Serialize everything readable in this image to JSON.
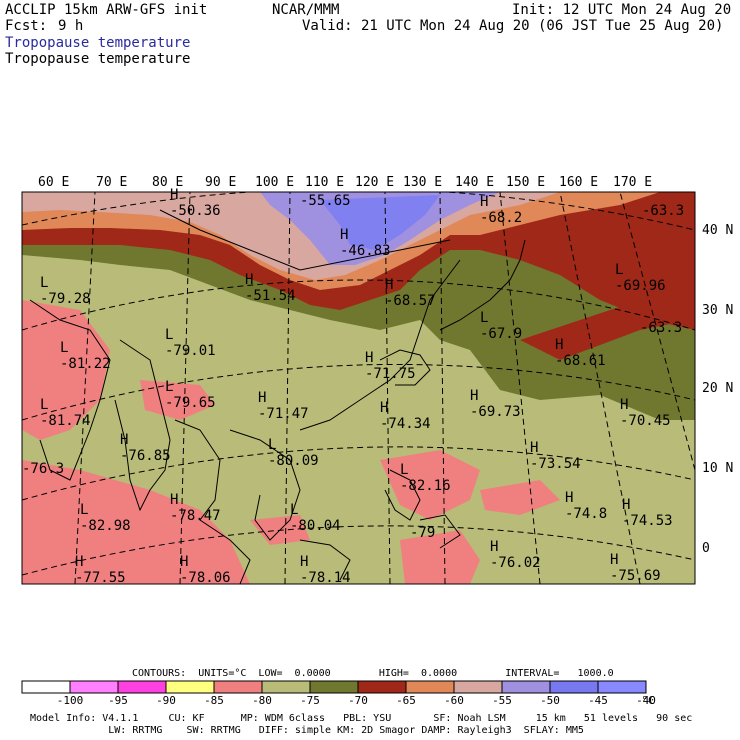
{
  "header": {
    "model": "ACCLIP 15km ARW-GFS init",
    "fcst_label": "Fcst:",
    "fcst_value": "9 h",
    "center": "NCAR/MMM",
    "init": "Init: 12 UTC Mon 24 Aug 20",
    "valid": "Valid: 21 UTC Mon 24 Aug 20 (06 JST Tue 25 Aug 20)",
    "field_1": "Tropopause temperature",
    "field_2": "Tropopause temperature"
  },
  "map": {
    "lon_labels": [
      "60 E",
      "70 E",
      "80 E",
      "90 E",
      "100 E",
      "110 E",
      "120 E",
      "130 E",
      "140 E",
      "150 E",
      "160 E",
      "170 E"
    ],
    "lat_labels": [
      "40 N",
      "30 N",
      "20 N",
      "10 N",
      "0"
    ],
    "extrema": [
      {
        "type": "H",
        "value": "-50.36"
      },
      {
        "type": "",
        "value": "-55.65"
      },
      {
        "type": "H",
        "value": "-46.83"
      },
      {
        "type": "H",
        "value": "-51.54"
      },
      {
        "type": "H",
        "value": "-68.2"
      },
      {
        "type": "",
        "value": "-63.3"
      },
      {
        "type": "L",
        "value": "-79.28"
      },
      {
        "type": "L",
        "value": "-69.96"
      },
      {
        "type": "H",
        "value": "-68.57"
      },
      {
        "type": "",
        "value": "-63.3"
      },
      {
        "type": "L",
        "value": "-81.22"
      },
      {
        "type": "L",
        "value": "-79.01"
      },
      {
        "type": "L",
        "value": "-67.9"
      },
      {
        "type": "H",
        "value": "-68.61"
      },
      {
        "type": "H",
        "value": "-71.75"
      },
      {
        "type": "L",
        "value": "-79.65"
      },
      {
        "type": "H",
        "value": "-71.47"
      },
      {
        "type": "H",
        "value": "-69.73"
      },
      {
        "type": "H",
        "value": "-70.45"
      },
      {
        "type": "L",
        "value": "-81.74"
      },
      {
        "type": "H",
        "value": "-74.34"
      },
      {
        "type": "H",
        "value": "-76.85"
      },
      {
        "type": "L",
        "value": "-80.09"
      },
      {
        "type": "H",
        "value": "-73.54"
      },
      {
        "type": "",
        "value": "-76.3"
      },
      {
        "type": "L",
        "value": "-82.16"
      },
      {
        "type": "L",
        "value": "-82.98"
      },
      {
        "type": "H",
        "value": "-78.47"
      },
      {
        "type": "L",
        "value": "-80.04"
      },
      {
        "type": "H",
        "value": "-74.8"
      },
      {
        "type": "H",
        "value": "-74.53"
      },
      {
        "type": "",
        "value": "-79"
      },
      {
        "type": "H",
        "value": "-76.02"
      },
      {
        "type": "H",
        "value": "-77.55"
      },
      {
        "type": "H",
        "value": "-78.06"
      },
      {
        "type": "H",
        "value": "-78.14"
      },
      {
        "type": "H",
        "value": "-75.69"
      }
    ]
  },
  "legend": {
    "contours": "CONTOURS:  UNITS=°C  LOW=  0.0000        HIGH=  0.0000        INTERVAL=   1000.0",
    "ticks": [
      "-100",
      "-95",
      "-90",
      "-85",
      "-80",
      "-75",
      "-70",
      "-65",
      "-60",
      "-55",
      "-50",
      "-45",
      "-40"
    ],
    "unit": "°C",
    "colors": [
      "#ffffff",
      "#ff80ff",
      "#ff40e0",
      "#ffff80",
      "#f08080",
      "#b8bc78",
      "#707830",
      "#a02818",
      "#e08858",
      "#d8a8a0",
      "#a090e0",
      "#7878f0",
      "#8888ff"
    ]
  },
  "footer": {
    "line1": "Model Info: V4.1.1     CU: KF      MP: WDM 6class   PBL: YSU       SF: Noah LSM     15 km   51 levels   90 sec",
    "line2": "             LW: RRTMG    SW: RRTMG   DIFF: simple KM: 2D Smagor DAMP: Rayleigh3  SFLAY: MM5"
  }
}
